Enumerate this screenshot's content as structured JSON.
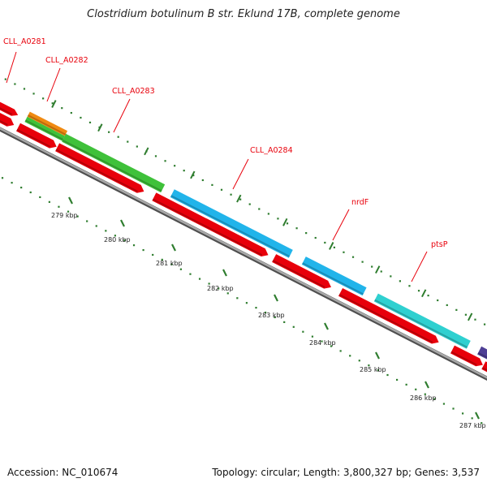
{
  "title": "Clostridium botulinum B str. Eklund 17B, complete genome",
  "footer": {
    "accession": "Accession: NC_010674",
    "topology": "Topology: circular; Length: 3,800,327 bp; Genes: 3,537"
  },
  "colors": {
    "backbone": "#8f8f8f",
    "cds": "#e8000b",
    "label": "#e8000b",
    "tick": "#2f7d2f",
    "green": "#3fc13a",
    "orange": "#f08a12",
    "blue": "#21b4ea",
    "teal": "#2fd0d0",
    "purple": "#4e3f95"
  },
  "gene_labels": [
    {
      "name": "CLL_A0281"
    },
    {
      "name": "CLL_A0282"
    },
    {
      "name": "CLL_A0283"
    },
    {
      "name": "CLL_A0284"
    },
    {
      "name": "nrdF"
    },
    {
      "name": "ptsP"
    }
  ],
  "ticks": [
    "279 kbp",
    "280 kbp",
    "281 kbp",
    "282 kbp",
    "283 kbp",
    "284 kbp",
    "285 kbp",
    "286 kbp",
    "287 kbp"
  ]
}
